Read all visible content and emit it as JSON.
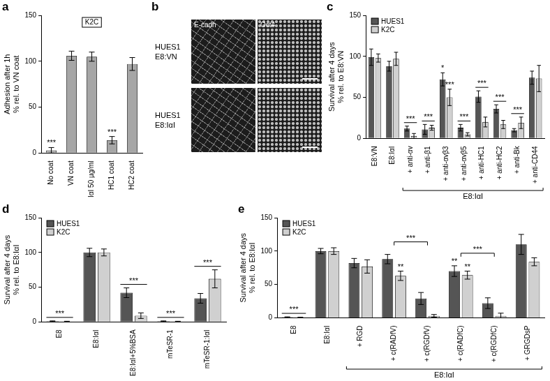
{
  "chart_data": [
    {
      "panel_label": "a",
      "type": "bar",
      "ylabel": [
        "Adhesion after 1h",
        "% rel. to VN coat"
      ],
      "ylim": [
        0,
        150
      ],
      "yticks": [
        0,
        50,
        100,
        150
      ],
      "grid": false,
      "legend": "upper center",
      "categories": [
        "No coat",
        "VN coat",
        "IαI 50 µg/ml",
        "HC1 coat",
        "HC2 coat"
      ],
      "series": [
        {
          "name": "K2C",
          "color": "#a6a6a6",
          "values": [
            3,
            106,
            105,
            14,
            97
          ],
          "errors": [
            3,
            5,
            5,
            4,
            7
          ]
        }
      ],
      "annotations": [
        {
          "category": "No coat",
          "series": "K2C",
          "text": "***"
        },
        {
          "category": "HC1 coat",
          "series": "K2C",
          "text": "***"
        }
      ]
    },
    {
      "panel_label": "c",
      "type": "bar",
      "ylabel": [
        "Survival after 4 days",
        "% rel. to E8:VN"
      ],
      "ylim": [
        0,
        150
      ],
      "yticks": [
        0,
        50,
        100,
        150
      ],
      "grid": false,
      "legend": "upper left",
      "categories": [
        "E8:VN",
        "E8:IαI",
        "+ anti-αv",
        "+ anti-β1",
        "+ anti-αvβ3",
        "+ anti-αvβ5",
        "+ anti-HC1",
        "+ anti-HC2",
        "+ anti-Bk",
        "+ anti-CD44"
      ],
      "series": [
        {
          "name": "HUES1",
          "color": "#555555",
          "values": [
            99,
            88,
            12,
            11,
            72,
            13,
            51,
            36,
            10,
            74
          ],
          "errors": [
            10,
            6,
            3,
            6,
            8,
            4,
            7,
            5,
            2,
            8
          ]
        },
        {
          "name": "K2C",
          "color": "#d0d0d0",
          "values": [
            98,
            97,
            3,
            13,
            50,
            5,
            20,
            17,
            19,
            73
          ],
          "errors": [
            5,
            8,
            3,
            3,
            10,
            2,
            6,
            5,
            7,
            16
          ]
        }
      ],
      "annotations": [
        {
          "category": "+ anti-αv",
          "text": "***"
        },
        {
          "category": "+ anti-β1",
          "text": "***"
        },
        {
          "category": "+ anti-αvβ3",
          "series": "HUES1",
          "text": "*"
        },
        {
          "category": "+ anti-αvβ3",
          "series": "K2C",
          "text": "***"
        },
        {
          "category": "+ anti-αvβ5",
          "text": "***"
        },
        {
          "category": "+ anti-HC1",
          "text": "***"
        },
        {
          "category": "+ anti-HC2",
          "text": "***"
        },
        {
          "category": "+ anti-Bk",
          "text": "***"
        }
      ],
      "group": {
        "label": "E8:IαI",
        "from": "+ anti-αv",
        "to": "+ anti-CD44"
      }
    },
    {
      "panel_label": "d",
      "type": "bar",
      "ylabel": [
        "Survival after 4 days",
        "% rel. to E8:IαI"
      ],
      "ylim": [
        0,
        150
      ],
      "yticks": [
        0,
        50,
        100,
        150
      ],
      "grid": false,
      "legend": "upper left",
      "categories": [
        "E8",
        "E8:IαI",
        "E8:IαI+5%BSA",
        "mTeSR-1",
        "mTeSR-1:IαI"
      ],
      "series": [
        {
          "name": "HUES1",
          "color": "#555555",
          "values": [
            1,
            100,
            42,
            1,
            34
          ],
          "errors": [
            0.5,
            6,
            7,
            0.5,
            7
          ]
        },
        {
          "name": "K2C",
          "color": "#d0d0d0",
          "values": [
            0.5,
            100,
            9,
            0.5,
            62
          ],
          "errors": [
            0.5,
            5,
            4,
            0.5,
            13
          ]
        }
      ],
      "annotations": [
        {
          "category": "E8",
          "text": "***"
        },
        {
          "category": "E8:IαI+5%BSA",
          "text": "***"
        },
        {
          "category": "mTeSR-1",
          "text": "***"
        },
        {
          "category": "mTeSR-1:IαI",
          "text": "***"
        }
      ]
    },
    {
      "panel_label": "e",
      "type": "bar",
      "ylabel": [
        "Survival after 4 days",
        "% rel. to E8:IαI"
      ],
      "ylim": [
        0,
        150
      ],
      "yticks": [
        0,
        50,
        100,
        150
      ],
      "grid": false,
      "legend": "upper left",
      "categories": [
        "E8",
        "E8:IαI",
        "+ RGD",
        "+ c(RADfV)",
        "+ c(RGDfV)",
        "+ c(RADfC)",
        "+ c(RGDfC)",
        "+ GRGDsP"
      ],
      "series": [
        {
          "name": "HUES1",
          "color": "#555555",
          "values": [
            1,
            100,
            82,
            88,
            29,
            70,
            22,
            110
          ],
          "errors": [
            0.5,
            4,
            7,
            7,
            9,
            8,
            8,
            15
          ]
        },
        {
          "name": "K2C",
          "color": "#d0d0d0",
          "values": [
            0.5,
            100,
            77,
            63,
            3,
            64,
            3,
            84
          ],
          "errors": [
            0.5,
            5,
            10,
            7,
            2,
            6,
            4,
            6
          ]
        }
      ],
      "annotations": [
        {
          "category": "E8",
          "text": "***"
        },
        {
          "category": "+ c(RADfV)",
          "series": "K2C",
          "text": "**"
        },
        {
          "category": "+ c(RADfC)",
          "series": "HUES1",
          "text": "**"
        },
        {
          "category": "+ c(RADfC)",
          "series": "K2C",
          "text": "**"
        }
      ],
      "comparisons": [
        {
          "from": "+ c(RADfV)",
          "to": "+ c(RGDfV)",
          "text": "***"
        },
        {
          "from": "+ c(RADfC)",
          "to": "+ c(RGDfC)",
          "text": "***"
        }
      ],
      "group": {
        "label": "E8:IαI",
        "from": "+ RGD",
        "to": "+ GRGDsP"
      }
    }
  ],
  "image_panel": {
    "panel_label": "b",
    "columns": [
      "E-cadh",
      "Oct4"
    ],
    "rows": [
      {
        "label": [
          "HUES1",
          "E8:VN"
        ]
      },
      {
        "label": [
          "HUES1",
          "E8:IαI"
        ]
      }
    ]
  }
}
